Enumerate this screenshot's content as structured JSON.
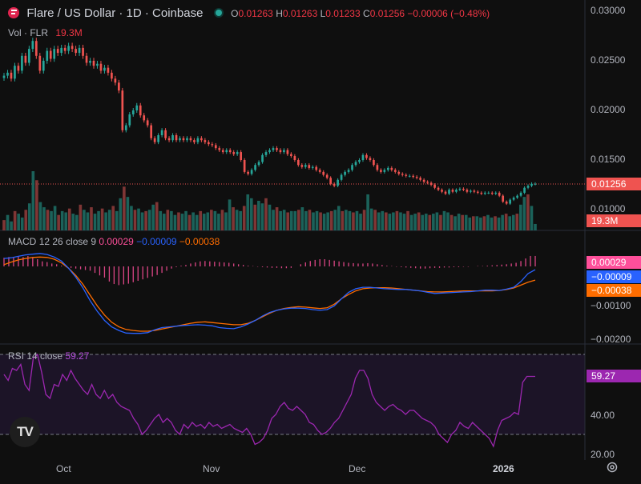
{
  "header": {
    "symbol": "Flare / US Dollar · 1D · Coinbase",
    "ohlc": {
      "o_label": "O",
      "o": "0.01263",
      "h_label": "H",
      "h": "0.01263",
      "l_label": "L",
      "l": "0.01233",
      "c_label": "C",
      "c": "0.01256",
      "change": "−0.00006 (−0.48%)"
    },
    "volume": {
      "label": "Vol · FLR",
      "value": "19.3M"
    }
  },
  "price_tag": "0.01256",
  "volume_tag": "19.3M",
  "macd": {
    "label": "MACD",
    "params": "12 26 close 9",
    "hist": "0.00029",
    "macd": "−0.00009",
    "signal": "−0.00038",
    "tags": {
      "hist": "0.00029",
      "macd": "−0.00009",
      "signal": "−0.00038"
    }
  },
  "rsi": {
    "label": "RSI",
    "params": "14 close",
    "value": "59.27",
    "tag": "59.27"
  },
  "x_axis": [
    "Oct",
    "Nov",
    "Dec",
    "2026"
  ],
  "price_axis": [
    "0.03000",
    "0.02500",
    "0.02000",
    "0.01500",
    "0.01000"
  ],
  "macd_axis": [
    "−0.00100",
    "−0.00200"
  ],
  "rsi_axis": [
    "40.00",
    "20.00"
  ],
  "logo_text": "TV",
  "colors": {
    "up": "#26a69a",
    "down": "#ef5350",
    "macd": "#2962ff",
    "signal": "#ff6d00",
    "hist": "#ff4f9a",
    "rsi": "#9c27b0"
  },
  "chart_data": {
    "type": "candlestick",
    "title": "Flare / US Dollar · 1D · Coinbase",
    "y_range": [
      0.0085,
      0.0301
    ],
    "price_closes": [
      0.0235,
      0.0238,
      0.0232,
      0.0245,
      0.024,
      0.0255,
      0.0248,
      0.0262,
      0.027,
      0.0255,
      0.024,
      0.025,
      0.026,
      0.0252,
      0.0262,
      0.0258,
      0.0263,
      0.026,
      0.0265,
      0.0262,
      0.0258,
      0.0263,
      0.0255,
      0.0248,
      0.025,
      0.0245,
      0.0247,
      0.024,
      0.0243,
      0.0238,
      0.0232,
      0.0228,
      0.022,
      0.018,
      0.0185,
      0.0196,
      0.02,
      0.0205,
      0.0195,
      0.019,
      0.0185,
      0.0172,
      0.0168,
      0.0175,
      0.018,
      0.0172,
      0.017,
      0.0175,
      0.017,
      0.0172,
      0.017,
      0.0172,
      0.017,
      0.0168,
      0.0172,
      0.017,
      0.0168,
      0.0166,
      0.0165,
      0.0162,
      0.016,
      0.0158,
      0.016,
      0.0158,
      0.0156,
      0.0158,
      0.015,
      0.0138,
      0.0136,
      0.014,
      0.0145,
      0.0148,
      0.0155,
      0.0158,
      0.016,
      0.0162,
      0.016,
      0.0158,
      0.016,
      0.0156,
      0.0154,
      0.015,
      0.0145,
      0.0143,
      0.0145,
      0.0142,
      0.0143,
      0.014,
      0.0138,
      0.0135,
      0.0132,
      0.0126,
      0.0124,
      0.013,
      0.0135,
      0.0138,
      0.014,
      0.0145,
      0.0148,
      0.015,
      0.0155,
      0.0152,
      0.015,
      0.0145,
      0.014,
      0.0138,
      0.014,
      0.0142,
      0.014,
      0.0138,
      0.0136,
      0.0135,
      0.0134,
      0.0134,
      0.0133,
      0.0132,
      0.013,
      0.0128,
      0.0127,
      0.0125,
      0.0122,
      0.012,
      0.0118,
      0.0116,
      0.012,
      0.0118,
      0.012,
      0.0121,
      0.012,
      0.0118,
      0.0119,
      0.0118,
      0.0117,
      0.0116,
      0.0117,
      0.0117,
      0.0116,
      0.0117,
      0.0114,
      0.0108,
      0.0106,
      0.011,
      0.0112,
      0.0114,
      0.0117,
      0.0122,
      0.0124,
      0.0126,
      0.0126
    ],
    "volume": [
      0.8,
      1.2,
      0.7,
      1.5,
      1.3,
      1.0,
      1.6,
      2.1,
      4.6,
      3.9,
      2.2,
      1.8,
      1.6,
      1.5,
      1.9,
      1.2,
      1.5,
      1.4,
      1.7,
      1.3,
      1.2,
      2.0,
      1.6,
      1.4,
      1.8,
      1.3,
      1.5,
      1.7,
      1.4,
      1.6,
      1.9,
      1.5,
      2.5,
      3.4,
      2.6,
      1.9,
      1.6,
      1.7,
      1.4,
      1.5,
      1.6,
      2.0,
      2.2,
      1.5,
      1.3,
      1.6,
      1.5,
      1.2,
      1.4,
      1.3,
      1.5,
      1.2,
      1.4,
      1.2,
      1.5,
      1.3,
      1.4,
      1.6,
      1.5,
      1.3,
      1.6,
      1.4,
      2.4,
      1.8,
      1.6,
      1.5,
      1.9,
      2.8,
      2.5,
      2.0,
      2.3,
      2.1,
      2.5,
      2.0,
      1.6,
      1.8,
      1.5,
      1.6,
      1.4,
      1.5,
      1.5,
      1.6,
      1.8,
      1.5,
      1.6,
      1.4,
      1.5,
      1.4,
      1.3,
      1.4,
      1.5,
      1.6,
      1.9,
      1.5,
      1.6,
      1.5,
      1.4,
      1.5,
      1.3,
      1.6,
      2.8,
      1.7,
      1.6,
      1.4,
      1.5,
      1.4,
      1.3,
      1.4,
      1.5,
      1.4,
      1.3,
      1.5,
      1.2,
      1.3,
      1.4,
      1.2,
      1.3,
      1.2,
      1.3,
      1.4,
      1.2,
      1.5,
      1.4,
      1.2,
      1.1,
      1.3,
      1.2,
      1.2,
      1.0,
      1.1,
      1.1,
      1.0,
      1.1,
      1.2,
      1.0,
      1.1,
      1.0,
      1.2,
      1.3,
      1.1,
      1.2,
      1.3,
      2.0,
      2.6,
      2.8,
      1.9,
      0.5
    ],
    "macd_hist": [
      0.00024,
      0.00026,
      0.00025,
      0.00027,
      0.00026,
      0.00029,
      0.00026,
      0.0002,
      0.00014,
      0.00012,
      8e-05,
      6e-05,
      2e-05,
      -2e-05,
      -4e-05,
      -6e-05,
      -8e-05,
      -0.0001,
      -0.00012,
      -0.00018,
      -0.00025,
      -0.00031,
      -0.00042,
      -0.00049,
      -0.00052,
      -0.0005,
      -0.00048,
      -0.00044,
      -0.0004,
      -0.00036,
      -0.00032,
      -0.00028,
      -0.00024,
      -0.00018,
      -0.00012,
      -6e-05,
      -2e-05,
      2e-05,
      4e-05,
      8e-05,
      0.00011,
      0.00014,
      0.00015,
      0.00014,
      0.00013,
      0.00012,
      0.00011,
      0.0001,
      8e-05,
      6e-05,
      4e-05,
      2e-05,
      1e-05,
      -1e-05,
      -2e-05,
      -3e-05,
      -4e-05,
      -4e-05,
      -5e-05,
      -5e-05,
      -4e-05,
      0.0,
      6e-05,
      0.00011,
      0.00015,
      0.00018,
      0.0002,
      0.0002,
      0.00018,
      0.00016,
      0.00014,
      0.00012,
      0.0001,
      9e-05,
      8e-05,
      8e-05,
      9e-05,
      8e-05,
      6e-05,
      4e-05,
      2e-05,
      1e-05,
      -1e-05,
      -2e-05,
      -3e-05,
      -4e-05,
      -5e-05,
      -6e-05,
      -6e-05,
      -5e-05,
      -4e-05,
      -4e-05,
      -3e-05,
      -3e-05,
      -2e-05,
      -2e-05,
      -1e-05,
      -1e-05,
      0.0,
      1e-05,
      1e-05,
      2e-05,
      3e-05,
      4e-05,
      5e-05,
      6e-05,
      8e-05,
      0.0001,
      0.00015,
      0.00022,
      0.00029,
      0.00029
    ],
    "macd_line": [
      0.00022,
      0.00024,
      0.00028,
      0.00032,
      0.00034,
      0.00036,
      0.00033,
      0.00026,
      0.00015,
      -5e-05,
      -0.0003,
      -0.0006,
      -0.00095,
      -0.00125,
      -0.0015,
      -0.00168,
      -0.00178,
      -0.00185,
      -0.00186,
      -0.00186,
      -0.00184,
      -0.00176,
      -0.0017,
      -0.00168,
      -0.00166,
      -0.00164,
      -0.00163,
      -0.00162,
      -0.00163,
      -0.00165,
      -0.0017,
      -0.00172,
      -0.00173,
      -0.00168,
      -0.0016,
      -0.0015,
      -0.00138,
      -0.00128,
      -0.00122,
      -0.00118,
      -0.00116,
      -0.00116,
      -0.00117,
      -0.0012,
      -0.00122,
      -0.0012,
      -0.0011,
      -0.0009,
      -0.00072,
      -0.00062,
      -0.00058,
      -0.00058,
      -0.0006,
      -0.00062,
      -0.00063,
      -0.00064,
      -0.00064,
      -0.00066,
      -0.00068,
      -0.00072,
      -0.00075,
      -0.00074,
      -0.00073,
      -0.00072,
      -0.00071,
      -0.0007,
      -0.00068,
      -0.00066,
      -0.00066,
      -0.00067,
      -0.00063,
      -0.00058,
      -0.00042,
      -0.0002,
      -9e-05
    ],
    "macd_signal": [
      5e-05,
      0.00012,
      0.00018,
      0.00022,
      0.00025,
      0.00026,
      0.00025,
      0.0002,
      0.0001,
      -5e-05,
      -0.00025,
      -0.0005,
      -0.0008,
      -0.0011,
      -0.00135,
      -0.00155,
      -0.00168,
      -0.00175,
      -0.00178,
      -0.0018,
      -0.0018,
      -0.00178,
      -0.00174,
      -0.0017,
      -0.00166,
      -0.00162,
      -0.00158,
      -0.00155,
      -0.00154,
      -0.00156,
      -0.00158,
      -0.0016,
      -0.00162,
      -0.00162,
      -0.00158,
      -0.0015,
      -0.0014,
      -0.0013,
      -0.00122,
      -0.00117,
      -0.00114,
      -0.00112,
      -0.00113,
      -0.00115,
      -0.00117,
      -0.00115,
      -0.00105,
      -0.0009,
      -0.00078,
      -0.00068,
      -0.00062,
      -0.0006,
      -0.00059,
      -0.00059,
      -0.0006,
      -0.00062,
      -0.00064,
      -0.00066,
      -0.00068,
      -0.0007,
      -0.00071,
      -0.00071,
      -0.0007,
      -0.00069,
      -0.00068,
      -0.00068,
      -0.00068,
      -0.00068,
      -0.00068,
      -0.00067,
      -0.00064,
      -0.0006,
      -0.00052,
      -0.00044,
      -0.00038
    ],
    "rsi": [
      60,
      57,
      63,
      62,
      65,
      55,
      52,
      68,
      70,
      61,
      50,
      48,
      55,
      54,
      60,
      57,
      62,
      58,
      55,
      52,
      50,
      55,
      50,
      48,
      52,
      48,
      50,
      46,
      44,
      43,
      42,
      38,
      35,
      30,
      32,
      35,
      38,
      40,
      36,
      38,
      36,
      32,
      30,
      35,
      33,
      36,
      34,
      35,
      33,
      36,
      34,
      35,
      33,
      34,
      35,
      33,
      32,
      31,
      33,
      30,
      25,
      26,
      28,
      32,
      38,
      40,
      44,
      46,
      43,
      42,
      44,
      42,
      40,
      36,
      35,
      32,
      30,
      31,
      33,
      36,
      38,
      42,
      46,
      50,
      58,
      62,
      62,
      58,
      50,
      46,
      44,
      42,
      44,
      45,
      43,
      42,
      40,
      42,
      42,
      40,
      38,
      37,
      36,
      34,
      30,
      28,
      26,
      30,
      32,
      36,
      34,
      33,
      36,
      34,
      32,
      30,
      28,
      24,
      32,
      37,
      38,
      39,
      41,
      40,
      56,
      59,
      59,
      59
    ],
    "rsi_levels": [
      70,
      30
    ],
    "x_ticks": [
      "Oct",
      "Nov",
      "Dec",
      "2026"
    ]
  }
}
